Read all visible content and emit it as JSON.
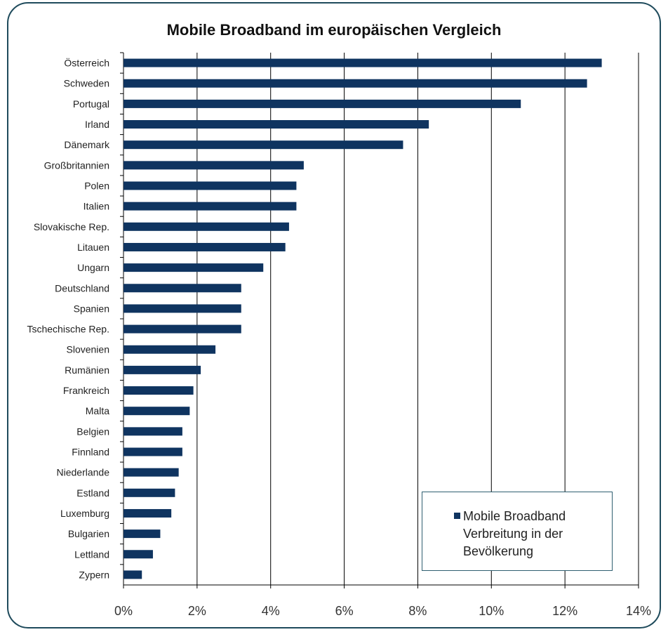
{
  "chart_data": {
    "type": "bar",
    "orientation": "horizontal",
    "title": "Mobile Broadband  im europäischen Vergleich",
    "categories": [
      "Österreich",
      "Schweden",
      "Portugal",
      "Irland",
      "Dänemark",
      "Großbritannien",
      "Polen",
      "Italien",
      "Slovakische Rep.",
      "Litauen",
      "Ungarn",
      "Deutschland",
      "Spanien",
      "Tschechische Rep.",
      "Slovenien",
      "Rumänien",
      "Frankreich",
      "Malta",
      "Belgien",
      "Finnland",
      "Niederlande",
      "Estland",
      "Luxemburg",
      "Bulgarien",
      "Lettland",
      "Zypern"
    ],
    "series": [
      {
        "name": "Mobile Broadband Verbreitung in der Bevölkerung",
        "values": [
          13.0,
          12.6,
          10.8,
          8.3,
          7.6,
          4.9,
          4.7,
          4.7,
          4.5,
          4.4,
          3.8,
          3.2,
          3.2,
          3.2,
          2.5,
          2.1,
          1.9,
          1.8,
          1.6,
          1.6,
          1.5,
          1.4,
          1.3,
          1.0,
          0.8,
          0.5
        ],
        "color": "#0f3460"
      }
    ],
    "xlim": [
      0,
      14
    ],
    "xticks": [
      "0%",
      "2%",
      "4%",
      "6%",
      "8%",
      "10%",
      "12%",
      "14%"
    ],
    "xunit": "%",
    "grid": "vertical major gridlines",
    "legend_position": "bottom-right",
    "frame_color": "#1f4b5c"
  }
}
